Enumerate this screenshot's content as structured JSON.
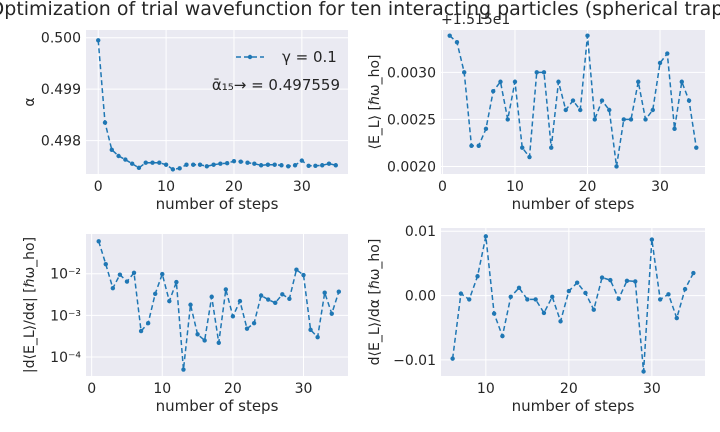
{
  "title": "Optimization of trial wavefunction for ten interacting particles (spherical trap)",
  "colors": {
    "line": "#1f77b4",
    "panel": "#eaeaf2",
    "grid": "#ffffff",
    "text": "#262626"
  },
  "chart_data": [
    {
      "type": "line",
      "xlabel": "number of steps",
      "ylabel": "α",
      "xlim": [
        -1.8,
        36.8
      ],
      "ylim": [
        0.49735,
        0.50015
      ],
      "xticks": [
        0,
        10,
        20,
        30
      ],
      "yticks": [
        0.498,
        0.499,
        0.5
      ],
      "ytick_labels": [
        "0.498",
        "0.499",
        "0.500"
      ],
      "grid": true,
      "legend": {
        "position": "top-right",
        "label": "γ = 0.1"
      },
      "annotation": "ᾱ₁₅→ = 0.497559",
      "series": [
        {
          "name": "γ = 0.1",
          "x": [
            0,
            1,
            2,
            3,
            4,
            5,
            6,
            7,
            8,
            9,
            10,
            11,
            12,
            13,
            14,
            15,
            16,
            17,
            18,
            19,
            20,
            21,
            22,
            23,
            24,
            25,
            26,
            27,
            28,
            29,
            30,
            31,
            32,
            33,
            34,
            35
          ],
          "y": [
            0.49995,
            0.49835,
            0.49782,
            0.4977,
            0.49763,
            0.49755,
            0.49747,
            0.49757,
            0.49757,
            0.49757,
            0.49753,
            0.49744,
            0.49746,
            0.49753,
            0.49753,
            0.49753,
            0.4975,
            0.49753,
            0.49755,
            0.49756,
            0.4976,
            0.49759,
            0.49757,
            0.49755,
            0.49752,
            0.49753,
            0.49753,
            0.49752,
            0.4975,
            0.49752,
            0.49761,
            0.49751,
            0.49751,
            0.49752,
            0.49755,
            0.49752
          ]
        }
      ]
    },
    {
      "type": "line",
      "xlabel": "number of steps",
      "ylabel": "⟨E_L⟩ [ℏω_ho]",
      "offset_text": "+1.515e1",
      "xlim": [
        -0.2,
        36.2
      ],
      "ylim": [
        0.00192,
        0.00345
      ],
      "xticks": [
        0,
        10,
        20,
        30
      ],
      "yticks": [
        0.002,
        0.0025,
        0.003
      ],
      "ytick_labels": [
        "0.0020",
        "0.0025",
        "0.0030"
      ],
      "grid": true,
      "series": [
        {
          "x": [
            1,
            2,
            3,
            4,
            5,
            6,
            7,
            8,
            9,
            10,
            11,
            12,
            13,
            14,
            15,
            16,
            17,
            18,
            19,
            20,
            21,
            22,
            23,
            24,
            25,
            26,
            27,
            28,
            29,
            30,
            31,
            32,
            33,
            34,
            35
          ],
          "y": [
            0.00339,
            0.00332,
            0.003,
            0.00222,
            0.00222,
            0.0024,
            0.0028,
            0.0029,
            0.0025,
            0.0029,
            0.0022,
            0.0021,
            0.003,
            0.003,
            0.0022,
            0.0029,
            0.0026,
            0.0027,
            0.0026,
            0.00339,
            0.0025,
            0.0027,
            0.0026,
            0.002,
            0.0025,
            0.0025,
            0.0029,
            0.0025,
            0.0026,
            0.0031,
            0.0032,
            0.0024,
            0.0029,
            0.0027,
            0.0022
          ]
        }
      ]
    },
    {
      "type": "line",
      "xlabel": "number of steps",
      "ylabel": "|d⟨E_L⟩/dα| [ℏω_ho]",
      "yscale": "log",
      "xlim": [
        -0.8,
        36.3
      ],
      "ylim": [
        3.5e-05,
        0.09
      ],
      "xticks": [
        0,
        10,
        20,
        30
      ],
      "yticks": [
        0.0001,
        0.001,
        0.01
      ],
      "ytick_labels": [
        "10⁻⁴",
        "10⁻³",
        "10⁻²"
      ],
      "grid": true,
      "series": [
        {
          "x": [
            1,
            2,
            3,
            4,
            5,
            6,
            7,
            8,
            9,
            10,
            11,
            12,
            13,
            14,
            15,
            16,
            17,
            18,
            19,
            20,
            21,
            22,
            23,
            24,
            25,
            26,
            27,
            28,
            29,
            30,
            31,
            32,
            33,
            34,
            35
          ],
          "y": [
            0.06,
            0.017,
            0.0045,
            0.0095,
            0.0065,
            0.0105,
            0.00042,
            0.00065,
            0.0033,
            0.0098,
            0.0022,
            0.0063,
            5e-05,
            0.0018,
            0.00035,
            0.00025,
            0.0028,
            0.00022,
            0.0042,
            0.00095,
            0.0022,
            0.00048,
            0.00065,
            0.003,
            0.0024,
            0.002,
            0.0032,
            0.0025,
            0.0125,
            0.0093,
            0.00045,
            0.0003,
            0.0035,
            0.0011,
            0.0037
          ]
        }
      ]
    },
    {
      "type": "line",
      "xlabel": "number of steps",
      "ylabel": "d⟨E_L⟩/dα [ℏω_ho]",
      "xlim": [
        4.6,
        36.4
      ],
      "ylim": [
        -0.0125,
        0.0105
      ],
      "xticks": [
        10,
        20,
        30
      ],
      "yticks": [
        -0.01,
        0,
        0.01
      ],
      "ytick_labels": [
        "−0.01",
        "0.00",
        "0.01"
      ],
      "grid": true,
      "series": [
        {
          "x": [
            6,
            7,
            8,
            9,
            10,
            11,
            12,
            13,
            14,
            15,
            16,
            17,
            18,
            19,
            20,
            21,
            22,
            23,
            24,
            25,
            26,
            27,
            28,
            29,
            30,
            31,
            32,
            33,
            34,
            35
          ],
          "y": [
            -0.0098,
            0.0003,
            -0.0006,
            0.003,
            0.0092,
            -0.0028,
            -0.0063,
            -0.0002,
            0.0012,
            -0.0006,
            -0.0006,
            -0.0027,
            -0.0002,
            -0.004,
            0.0007,
            0.002,
            0.0004,
            -0.0022,
            0.0028,
            0.0024,
            -0.0005,
            0.0023,
            0.0022,
            -0.0118,
            0.0087,
            -0.0006,
            0.0002,
            -0.0035,
            0.001,
            0.0035
          ]
        }
      ]
    }
  ]
}
